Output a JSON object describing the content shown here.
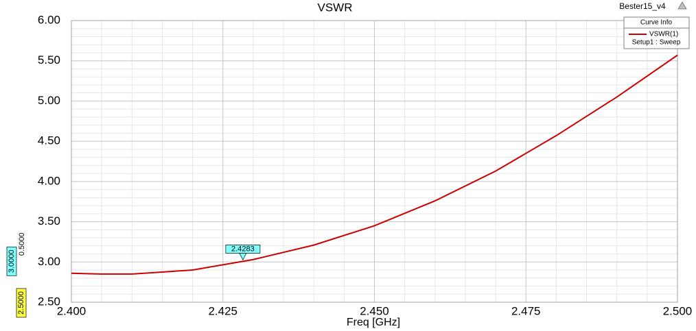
{
  "chart_data": {
    "type": "line",
    "title": "VSWR",
    "project": "Bester15_v4",
    "x_label": "Freq [GHz]",
    "legend_title": "Curve Info",
    "x": [
      2.4,
      2.405,
      2.41,
      2.42,
      2.43,
      2.44,
      2.45,
      2.46,
      2.47,
      2.48,
      2.49,
      2.5
    ],
    "series": [
      {
        "name": "VSWR(1)",
        "subtitle": "Setup1 : Sweep",
        "color": "#cc0000",
        "values": [
          2.86,
          2.85,
          2.85,
          2.9,
          3.03,
          3.21,
          3.45,
          3.76,
          4.13,
          4.57,
          5.05,
          5.57
        ]
      }
    ],
    "xlim": [
      2.4,
      2.5
    ],
    "ylim": [
      2.5,
      6
    ],
    "xticks": [
      {
        "value": 2.4,
        "label": "2.400"
      },
      {
        "value": 2.425,
        "label": "2.425"
      },
      {
        "value": 2.45,
        "label": "2.450"
      },
      {
        "value": 2.475,
        "label": "2.475"
      },
      {
        "value": 2.5,
        "label": "2.500"
      }
    ],
    "yticks": [
      {
        "value": 2.5,
        "label": "2.50"
      },
      {
        "value": 3,
        "label": "3.00"
      },
      {
        "value": 3.5,
        "label": "3.50"
      },
      {
        "value": 4,
        "label": "4.00"
      },
      {
        "value": 4.5,
        "label": "4.50"
      },
      {
        "value": 5,
        "label": "5.00"
      },
      {
        "value": 5.5,
        "label": "5.50"
      },
      {
        "value": 6,
        "label": "6.00"
      }
    ],
    "grid": true,
    "x_marker": 2.4283,
    "y_markers": [
      {
        "value": 3,
        "label": "3.0000",
        "color": "#80ffff"
      },
      {
        "value": 2.5,
        "label": "2.5000",
        "color": "#ffff40"
      }
    ],
    "y_marker_delta": {
      "value": 0.5,
      "label": "0.5000"
    }
  }
}
